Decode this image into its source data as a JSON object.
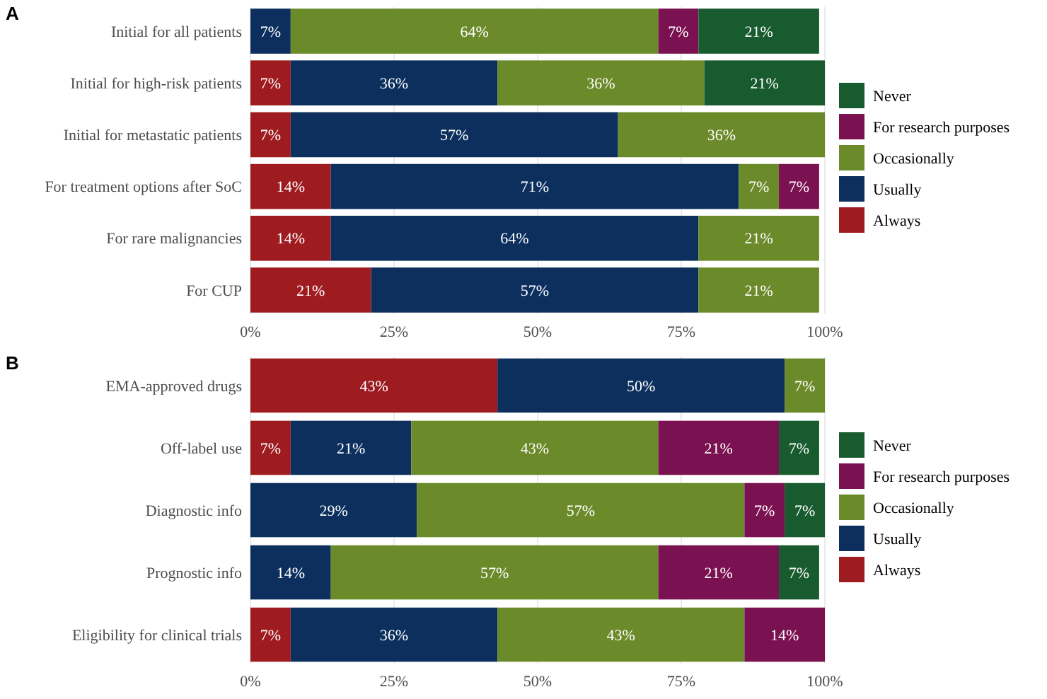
{
  "chart_data": [
    {
      "type": "bar",
      "title": "A",
      "orientation": "horizontal",
      "stacked": true,
      "categories": [
        "Initial for all patients",
        "Initial for high-risk patients",
        "Initial for metastatic patients",
        "For treatment options after SoC",
        "For rare malignancies",
        "For CUP"
      ],
      "series": [
        {
          "name": "Always",
          "color": "#9e1b20",
          "values": [
            null,
            7,
            7,
            14,
            14,
            21
          ],
          "value_labels": [
            null,
            "7%",
            "7%",
            "14%",
            "14%",
            "21%"
          ]
        },
        {
          "name": "Usually",
          "color": "#0c2f5e",
          "values": [
            7,
            36,
            57,
            71,
            64,
            57
          ],
          "value_labels": [
            "7%",
            "36%",
            "57%",
            "71%",
            "64%",
            "57%"
          ]
        },
        {
          "name": "Occasionally",
          "color": "#6b8a2a",
          "values": [
            64,
            36,
            36,
            7,
            21,
            21
          ],
          "value_labels": [
            "64%",
            "36%",
            "36%",
            "7%",
            "21%",
            "21%"
          ]
        },
        {
          "name": "For research purposes",
          "color": "#7a1150",
          "values": [
            7,
            null,
            null,
            7,
            null,
            null
          ],
          "value_labels": [
            "7%",
            null,
            null,
            "7%",
            null,
            null
          ]
        },
        {
          "name": "Never",
          "color": "#175b2e",
          "values": [
            21,
            21,
            null,
            null,
            null,
            null
          ],
          "value_labels": [
            "21%",
            "21%",
            null,
            null,
            null,
            null
          ]
        }
      ],
      "xlim": [
        0,
        100
      ],
      "xticks": [
        {
          "value": 0,
          "label": "0%"
        },
        {
          "value": 25,
          "label": "25%"
        },
        {
          "value": 50,
          "label": "50%"
        },
        {
          "value": 75,
          "label": "75%"
        },
        {
          "value": 100,
          "label": "100%"
        }
      ],
      "grid": "x",
      "legend": "right"
    },
    {
      "type": "bar",
      "title": "B",
      "orientation": "horizontal",
      "stacked": true,
      "categories": [
        "EMA-approved drugs",
        "Off-label use",
        "Diagnostic info",
        "Prognostic info",
        "Eligibility for clinical trials"
      ],
      "series": [
        {
          "name": "Always",
          "color": "#9e1b20",
          "values": [
            43,
            7,
            null,
            null,
            7
          ],
          "value_labels": [
            "43%",
            "7%",
            null,
            null,
            "7%"
          ]
        },
        {
          "name": "Usually",
          "color": "#0c2f5e",
          "values": [
            50,
            21,
            29,
            14,
            36
          ],
          "value_labels": [
            "50%",
            "21%",
            "29%",
            "14%",
            "36%"
          ]
        },
        {
          "name": "Occasionally",
          "color": "#6b8a2a",
          "values": [
            7,
            43,
            57,
            57,
            43
          ],
          "value_labels": [
            "7%",
            "43%",
            "57%",
            "57%",
            "43%"
          ]
        },
        {
          "name": "For research purposes",
          "color": "#7a1150",
          "values": [
            null,
            21,
            7,
            21,
            14
          ],
          "value_labels": [
            null,
            "21%",
            "7%",
            "21%",
            "14%"
          ]
        },
        {
          "name": "Never",
          "color": "#175b2e",
          "values": [
            null,
            7,
            7,
            7,
            null
          ],
          "value_labels": [
            null,
            "7%",
            "7%",
            "7%",
            null
          ]
        }
      ],
      "xlim": [
        0,
        100
      ],
      "xticks": [
        {
          "value": 0,
          "label": "0%"
        },
        {
          "value": 25,
          "label": "25%"
        },
        {
          "value": 50,
          "label": "50%"
        },
        {
          "value": 75,
          "label": "75%"
        },
        {
          "value": 100,
          "label": "100%"
        }
      ],
      "grid": "x",
      "legend": "right"
    }
  ]
}
